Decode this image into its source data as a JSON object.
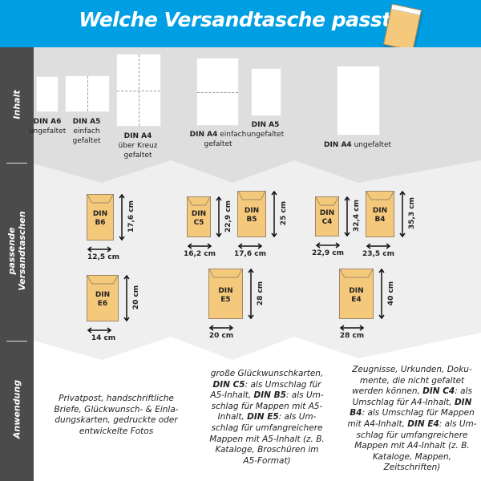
{
  "header": {
    "title": "Welche Versandtasche passt?",
    "icon": "envelope-icon"
  },
  "sidebar": {
    "rows": [
      "Inhalt",
      "passende Versandtaschen",
      "Anwendung"
    ]
  },
  "colors": {
    "header": "#009fe3",
    "sidebar": "#4b4b4b",
    "envelope": "#f5c97c",
    "row1": "#dedede",
    "row2": "#efefef"
  },
  "content": [
    {
      "name": "DIN A6",
      "desc": "ungefaltet"
    },
    {
      "name": "DIN A5",
      "desc1": "einfach",
      "desc2": "gefaltet"
    },
    {
      "name": "DIN A4",
      "desc1": "über Kreuz",
      "desc2": "gefaltet"
    },
    {
      "name": "DIN A4",
      "desc1": "einfach",
      "desc2": "gefaltet"
    },
    {
      "name": "DIN A5",
      "desc": "ungefaltet"
    },
    {
      "name": "DIN A4",
      "desc": "ungefaltet"
    }
  ],
  "envelopes": [
    {
      "l1": "DIN",
      "l2": "B6",
      "height": "17,6 cm",
      "width": "12,5 cm"
    },
    {
      "l1": "DIN",
      "l2": "E6",
      "height": "20 cm",
      "width": "14 cm"
    },
    {
      "l1": "DIN",
      "l2": "C5",
      "height": "22,9 cm",
      "width": "16,2 cm"
    },
    {
      "l1": "DIN",
      "l2": "B5",
      "height": "25 cm",
      "width": "17,6 cm"
    },
    {
      "l1": "DIN",
      "l2": "E5",
      "height": "28 cm",
      "width": "20 cm"
    },
    {
      "l1": "DIN",
      "l2": "C4",
      "height": "32,4 cm",
      "width": "22,9 cm"
    },
    {
      "l1": "DIN",
      "l2": "B4",
      "height": "35,3 cm",
      "width": "23,5 cm"
    },
    {
      "l1": "DIN",
      "l2": "E4",
      "height": "40 cm",
      "width": "28 cm"
    }
  ],
  "usage": [
    [
      {
        "t": "Privatpost, handschriftliche Briefe, Glückwunsch- & Einla-dungskarten, gedruckte oder entwickelte Fotos"
      }
    ],
    [
      {
        "t": "große Glückwunschkarten, "
      },
      {
        "t": "DIN C5",
        "b": true
      },
      {
        "t": ": als Umschlag für A5-Inhalt, "
      },
      {
        "t": "DIN B5",
        "b": true
      },
      {
        "t": ": als Um-schlag für Mappen mit A5-Inhalt, "
      },
      {
        "t": "DIN E5",
        "b": true
      },
      {
        "t": ": als Um-schlag für umfangreichere Mappen mit A5-Inhalt (z. B. Kataloge, Broschüren im A5-Format)"
      }
    ],
    [
      {
        "t": "Zeugnisse, Urkunden, Doku-mente, die nicht gefaltet werden können, "
      },
      {
        "t": "DIN C4",
        "b": true
      },
      {
        "t": ": als Umschlag für A4-Inhalt, "
      },
      {
        "t": "DIN B4",
        "b": true
      },
      {
        "t": ": als Umschlag für Mappen mit A4-Inhalt, "
      },
      {
        "t": "DIN E4",
        "b": true
      },
      {
        "t": ": als Um-schlag für umfangreichere Mappen mit A4-Inhalt (z. B. Kataloge, Mappen, Zeitschriften)"
      }
    ]
  ]
}
